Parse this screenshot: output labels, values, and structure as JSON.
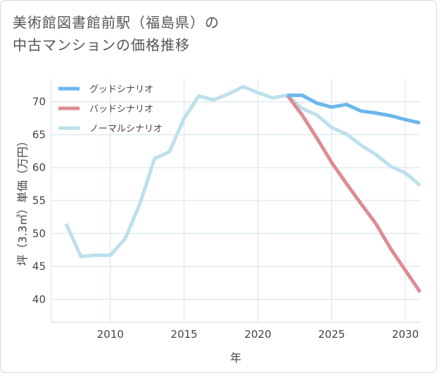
{
  "title": {
    "line1": "美術館図書館前駅（福島県）の",
    "line2": "中古マンションの価格推移"
  },
  "chart_data": {
    "type": "line",
    "xlabel": "年",
    "ylabel": "坪（3.3㎡）単価（万円）",
    "xlim": [
      2006,
      2031
    ],
    "ylim": [
      36.5,
      73.5
    ],
    "x_ticks": [
      2010,
      2015,
      2020,
      2025,
      2030
    ],
    "y_ticks": [
      40,
      45,
      50,
      55,
      60,
      65,
      70
    ],
    "x_tick_labels": [
      "2010",
      "2015",
      "2020",
      "2025",
      "2030"
    ],
    "y_tick_labels": [
      "40",
      "45",
      "50",
      "55",
      "60",
      "65",
      "70"
    ],
    "grid": true,
    "legend_position": "top-left",
    "series": [
      {
        "name": "グッドシナリオ",
        "color": "#6bb7ec",
        "x": [
          2022,
          2023,
          2024,
          2025,
          2026,
          2027,
          2028,
          2029,
          2030,
          2031
        ],
        "values": [
          71.0,
          71.0,
          69.8,
          69.2,
          69.6,
          68.6,
          68.3,
          67.9,
          67.3,
          66.8
        ]
      },
      {
        "name": "バッドシナリオ",
        "color": "#dc8c95",
        "x": [
          2022,
          2023,
          2024,
          2025,
          2026,
          2027,
          2028,
          2029,
          2030,
          2031
        ],
        "values": [
          71.0,
          68.0,
          64.5,
          60.8,
          57.6,
          54.5,
          51.5,
          47.7,
          44.4,
          41.1
        ]
      },
      {
        "name": "ノーマルシナリオ",
        "color": "#bde0ec",
        "x": [
          2007,
          2008,
          2009,
          2010,
          2011,
          2012,
          2013,
          2014,
          2015,
          2016,
          2017,
          2018,
          2019,
          2020,
          2021,
          2022,
          2023,
          2024,
          2025,
          2026,
          2027,
          2028,
          2029,
          2030,
          2031
        ],
        "values": [
          51.5,
          46.5,
          46.7,
          46.7,
          49.2,
          54.5,
          61.4,
          62.4,
          67.5,
          70.9,
          70.3,
          71.2,
          72.3,
          71.4,
          70.6,
          71.0,
          69.0,
          68.0,
          66.1,
          65.1,
          63.4,
          62.0,
          60.2,
          59.2,
          57.3
        ]
      }
    ]
  }
}
